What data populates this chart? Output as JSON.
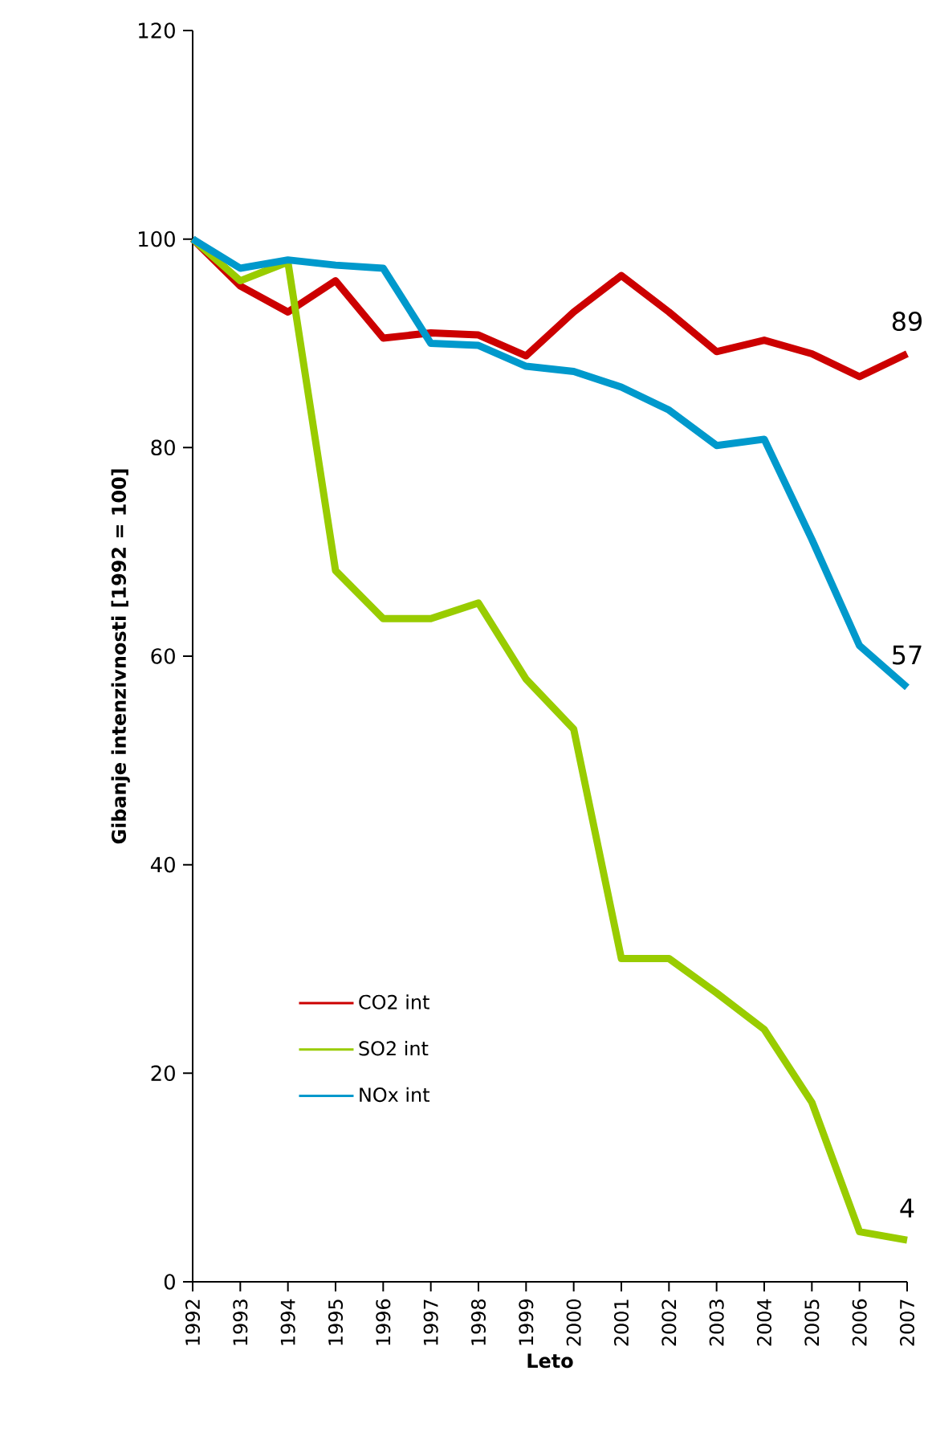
{
  "chart_data": {
    "type": "line",
    "xlabel": "Leto",
    "ylabel": "Gibanje intenzivnosti [1992 = 100]",
    "categories": [
      "1992",
      "1993",
      "1994",
      "1995",
      "1996",
      "1997",
      "1998",
      "1999",
      "2000",
      "2001",
      "2002",
      "2003",
      "2004",
      "2005",
      "2006",
      "2007"
    ],
    "ylim": [
      0,
      120
    ],
    "yticks": [
      0,
      20,
      40,
      60,
      80,
      100,
      120
    ],
    "legend": "bottom left",
    "line_style": "solid",
    "series": [
      {
        "name": "CO2 int",
        "color": "#cc0000",
        "values": [
          100,
          95.5,
          93,
          96,
          90.5,
          91,
          90.8,
          88.8,
          93,
          96.5,
          93,
          89.2,
          90.3,
          89,
          86.8,
          89
        ],
        "value_labels": [
          null,
          null,
          null,
          null,
          null,
          null,
          null,
          null,
          null,
          null,
          null,
          null,
          null,
          null,
          null,
          "89"
        ]
      },
      {
        "name": "SO2 int",
        "color": "#99cc00",
        "values": [
          100,
          96,
          97.8,
          68.2,
          63.6,
          63.6,
          65.1,
          57.8,
          53,
          31,
          31,
          27.7,
          24.2,
          17.2,
          4.8,
          4
        ],
        "value_labels": [
          null,
          null,
          null,
          null,
          null,
          null,
          null,
          null,
          null,
          null,
          null,
          null,
          null,
          null,
          null,
          "4"
        ]
      },
      {
        "name": "NOx int",
        "color": "#0099cc",
        "values": [
          100,
          97.2,
          98,
          97.5,
          97.2,
          90,
          89.8,
          87.8,
          87.3,
          85.8,
          83.6,
          80.2,
          80.8,
          71.2,
          61,
          57
        ],
        "value_labels": [
          null,
          null,
          null,
          null,
          null,
          null,
          null,
          null,
          null,
          null,
          null,
          null,
          null,
          null,
          null,
          "57"
        ]
      }
    ]
  }
}
